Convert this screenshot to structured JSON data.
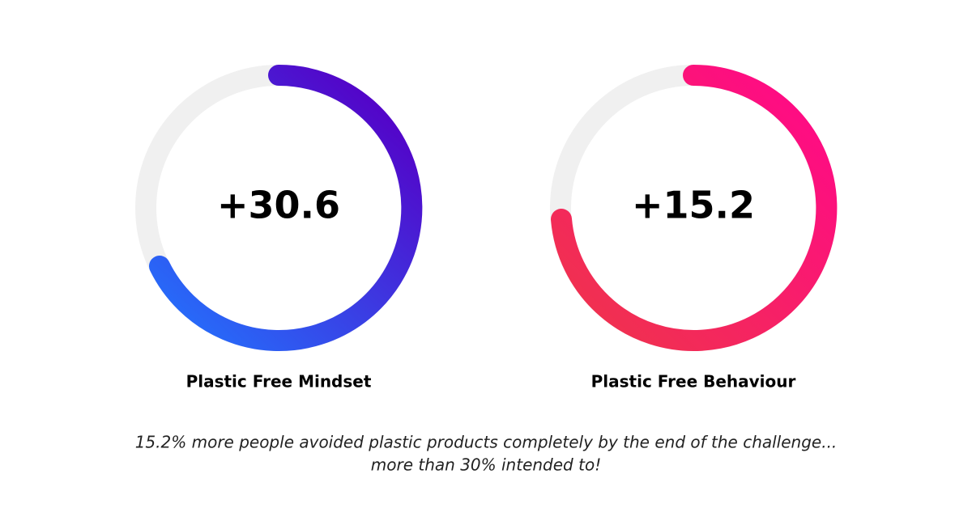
{
  "gauges": [
    {
      "value_label": "+30.6",
      "label": "Plastic Free Mindset"
    },
    {
      "value_label": "+15.2",
      "label": "Plastic Free Behaviour"
    }
  ],
  "caption": [
    "15.2% more people avoided plastic products completely by the end of the challenge...",
    "more than 30% intended to!"
  ]
}
